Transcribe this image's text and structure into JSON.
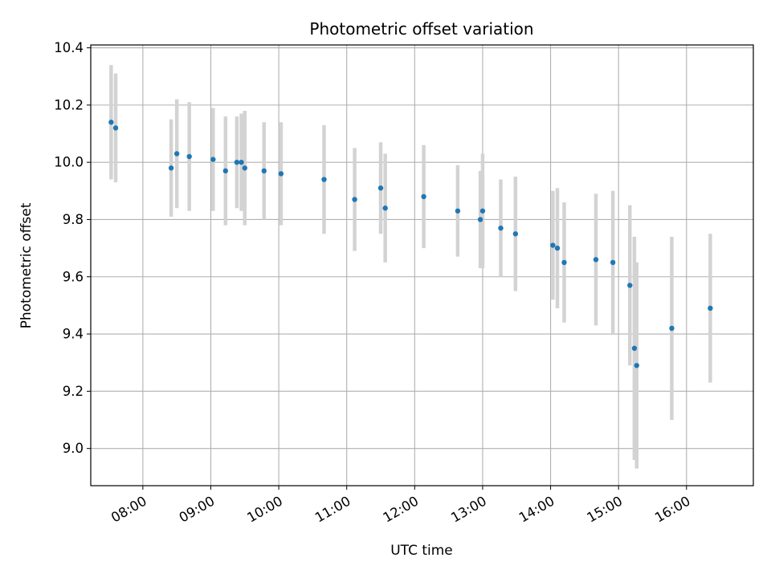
{
  "chart_data": {
    "type": "scatter",
    "title": "Photometric offset variation",
    "xlabel": "UTC time",
    "ylabel": "Photometric offset",
    "x_axis_type": "time",
    "xlim": [
      "07:14",
      "16:59"
    ],
    "ylim": [
      8.87,
      10.41
    ],
    "grid": true,
    "xticks": [
      "08:00",
      "09:00",
      "10:00",
      "11:00",
      "12:00",
      "13:00",
      "14:00",
      "15:00",
      "16:00"
    ],
    "yticks": [
      "9.0",
      "9.2",
      "9.4",
      "9.6",
      "9.8",
      "10.0",
      "10.2",
      "10.4"
    ],
    "marker_color": "#1f77b4",
    "errorbar_color": "#d3d3d3",
    "series": [
      {
        "points": [
          {
            "t": "07:32",
            "y": 10.14,
            "err": 0.2
          },
          {
            "t": "07:36",
            "y": 10.12,
            "err": 0.19
          },
          {
            "t": "08:25",
            "y": 9.98,
            "err": 0.17
          },
          {
            "t": "08:30",
            "y": 10.03,
            "err": 0.19
          },
          {
            "t": "08:41",
            "y": 10.02,
            "err": 0.19
          },
          {
            "t": "09:02",
            "y": 10.01,
            "err": 0.18
          },
          {
            "t": "09:13",
            "y": 9.97,
            "err": 0.19
          },
          {
            "t": "09:23",
            "y": 10.0,
            "err": 0.16
          },
          {
            "t": "09:27",
            "y": 10.0,
            "err": 0.17
          },
          {
            "t": "09:30",
            "y": 9.98,
            "err": 0.2
          },
          {
            "t": "09:47",
            "y": 9.97,
            "err": 0.17
          },
          {
            "t": "10:02",
            "y": 9.96,
            "err": 0.18
          },
          {
            "t": "10:40",
            "y": 9.94,
            "err": 0.19
          },
          {
            "t": "11:07",
            "y": 9.87,
            "err": 0.18
          },
          {
            "t": "11:30",
            "y": 9.91,
            "err": 0.16
          },
          {
            "t": "11:34",
            "y": 9.84,
            "err": 0.19
          },
          {
            "t": "12:08",
            "y": 9.88,
            "err": 0.18
          },
          {
            "t": "12:38",
            "y": 9.83,
            "err": 0.16
          },
          {
            "t": "12:58",
            "y": 9.8,
            "err": 0.17
          },
          {
            "t": "13:00",
            "y": 9.83,
            "err": 0.2
          },
          {
            "t": "13:16",
            "y": 9.77,
            "err": 0.17
          },
          {
            "t": "13:29",
            "y": 9.75,
            "err": 0.2
          },
          {
            "t": "14:02",
            "y": 9.71,
            "err": 0.19
          },
          {
            "t": "14:06",
            "y": 9.7,
            "err": 0.21
          },
          {
            "t": "14:12",
            "y": 9.65,
            "err": 0.21
          },
          {
            "t": "14:40",
            "y": 9.66,
            "err": 0.23
          },
          {
            "t": "14:55",
            "y": 9.65,
            "err": 0.25
          },
          {
            "t": "15:10",
            "y": 9.57,
            "err": 0.28
          },
          {
            "t": "15:14",
            "y": 9.35,
            "err": 0.39
          },
          {
            "t": "15:16",
            "y": 9.29,
            "err": 0.36
          },
          {
            "t": "15:47",
            "y": 9.42,
            "err": 0.32
          },
          {
            "t": "16:21",
            "y": 9.49,
            "err": 0.26
          }
        ]
      }
    ]
  }
}
